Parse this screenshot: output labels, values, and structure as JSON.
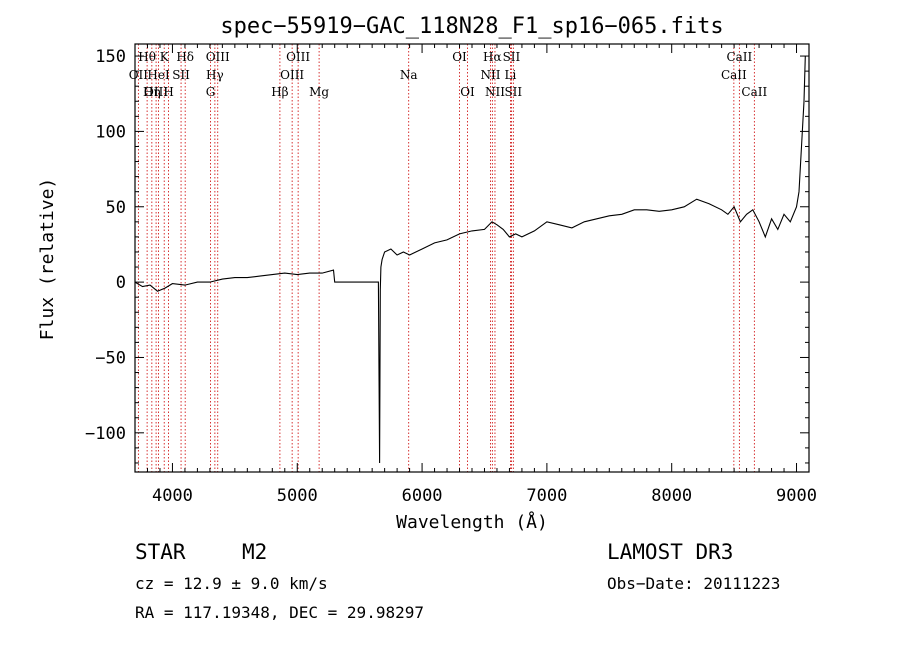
{
  "chart_data": {
    "type": "line",
    "title": "spec−55919−GAC_118N28_F1_sp16−065.fits",
    "xlabel": "Wavelength (Å)",
    "ylabel": "Flux (relative)",
    "xlim": [
      3700,
      9100
    ],
    "ylim": [
      -126,
      158
    ],
    "x_ticks": [
      4000,
      5000,
      6000,
      7000,
      8000,
      9000
    ],
    "y_ticks": [
      -100,
      -50,
      0,
      50,
      100,
      150
    ],
    "y_tick_labels": [
      "−100",
      "−50",
      "0",
      "50",
      "100",
      "150"
    ],
    "series": [
      {
        "name": "spectrum",
        "x": [
          3700,
          3760,
          3820,
          3880,
          3940,
          4000,
          4100,
          4200,
          4300,
          4400,
          4500,
          4600,
          4700,
          4800,
          4900,
          5000,
          5100,
          5200,
          5290,
          5300,
          5400,
          5500,
          5600,
          5650,
          5660,
          5665,
          5670,
          5680,
          5700,
          5750,
          5800,
          5850,
          5900,
          5950,
          6000,
          6100,
          6200,
          6300,
          6400,
          6500,
          6560,
          6600,
          6650,
          6700,
          6750,
          6800,
          6900,
          7000,
          7100,
          7200,
          7300,
          7400,
          7500,
          7600,
          7700,
          7800,
          7900,
          8000,
          8100,
          8200,
          8300,
          8400,
          8450,
          8500,
          8550,
          8600,
          8650,
          8700,
          8750,
          8800,
          8850,
          8900,
          8950,
          9000,
          9020,
          9040,
          9060,
          9070
        ],
        "y": [
          0,
          -3,
          -2,
          -6,
          -4,
          -1,
          -2,
          0,
          0,
          2,
          3,
          3,
          4,
          5,
          6,
          5,
          6,
          6,
          8,
          0,
          0,
          0,
          0,
          0,
          -120,
          -5,
          10,
          15,
          20,
          22,
          18,
          20,
          18,
          20,
          22,
          26,
          28,
          32,
          34,
          35,
          40,
          38,
          35,
          30,
          32,
          30,
          34,
          40,
          38,
          36,
          40,
          42,
          44,
          45,
          48,
          48,
          47,
          48,
          50,
          55,
          52,
          48,
          45,
          50,
          40,
          45,
          48,
          40,
          30,
          42,
          35,
          45,
          40,
          50,
          60,
          90,
          120,
          150
        ]
      }
    ],
    "emission_lines": [
      {
        "label": "Hθ",
        "wave": 3797,
        "row": 0
      },
      {
        "label": "OII",
        "wave": 3727,
        "row": 1
      },
      {
        "label": "OIII",
        "wave": 3869,
        "row": 2
      },
      {
        "label": "K",
        "wave": 3934,
        "row": 0
      },
      {
        "label": "HeI",
        "wave": 3889,
        "row": 1
      },
      {
        "label": "Hη",
        "wave": 3835,
        "row": 2
      },
      {
        "label": "SII",
        "wave": 4069,
        "row": 1
      },
      {
        "label": "H",
        "wave": 3969,
        "row": 2
      },
      {
        "label": "Hδ",
        "wave": 4102,
        "row": 0
      },
      {
        "label": "OIII",
        "wave": 4363,
        "row": 0
      },
      {
        "label": "Hγ",
        "wave": 4340,
        "row": 1
      },
      {
        "label": "G",
        "wave": 4305,
        "row": 2
      },
      {
        "label": "OIII",
        "wave": 5007,
        "row": 0
      },
      {
        "label": "OIII",
        "wave": 4959,
        "row": 1
      },
      {
        "label": "Hβ",
        "wave": 4861,
        "row": 2
      },
      {
        "label": "Mg",
        "wave": 5175,
        "row": 2
      },
      {
        "label": "Na",
        "wave": 5893,
        "row": 1
      },
      {
        "label": "OI",
        "wave": 6300,
        "row": 0
      },
      {
        "label": "OI",
        "wave": 6364,
        "row": 2
      },
      {
        "label": "Hα",
        "wave": 6563,
        "row": 0
      },
      {
        "label": "SII",
        "wave": 6716,
        "row": 0
      },
      {
        "label": "NII",
        "wave": 6548,
        "row": 1
      },
      {
        "label": "Li",
        "wave": 6708,
        "row": 1
      },
      {
        "label": "NII",
        "wave": 6584,
        "row": 2
      },
      {
        "label": "SII",
        "wave": 6731,
        "row": 2
      },
      {
        "label": "CaII",
        "wave": 8542,
        "row": 0
      },
      {
        "label": "CaII",
        "wave": 8498,
        "row": 1
      },
      {
        "label": "CaII",
        "wave": 8662,
        "row": 2
      }
    ]
  },
  "info": {
    "object_class": "STAR",
    "subclass": "M2",
    "survey": "LAMOST DR3",
    "redshift": "cz = 12.9 ± 9.0 km/s",
    "obs_date": "Obs−Date: 20111223",
    "coords": "RA = 117.19348, DEC =  29.98297"
  },
  "colors": {
    "axis": "#000000",
    "spectrum": "#000000",
    "line_marker": "#cc0000"
  }
}
